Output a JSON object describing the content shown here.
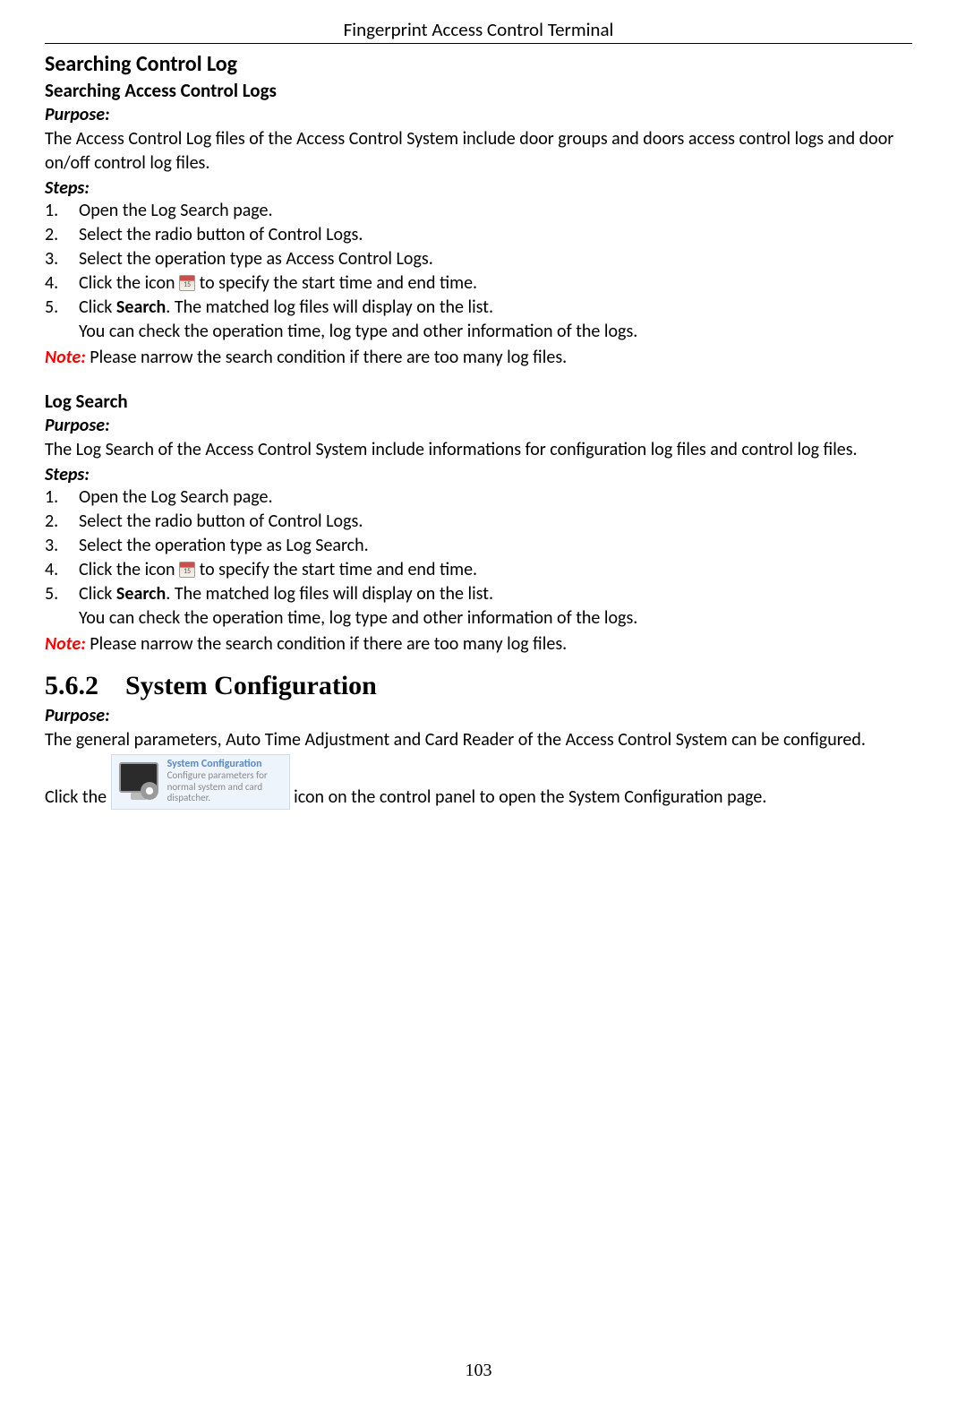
{
  "header": {
    "title": "Fingerprint Access Control Terminal"
  },
  "section1": {
    "heading": "Searching Control Log",
    "sub1": {
      "heading": "Searching Access Control Logs",
      "purpose_label": "Purpose:",
      "purpose_text": "The Access Control Log files of the Access Control System include door groups and doors access control logs and door on/off control log files.",
      "steps_label": "Steps:",
      "steps": [
        "Open the Log Search page.",
        "Select the radio button of Control Logs.",
        "Select the operation type as Access Control Logs."
      ],
      "step4_prefix": "Click the icon",
      "step4_suffix": " to specify the start time and end time.",
      "step5_prefix": "Click ",
      "step5_bold": "Search",
      "step5_suffix": ". The matched log files will display on the list.",
      "step5_line2": "You can check the operation time, log type and other information of the logs.",
      "note_label": "Note:",
      "note_text": " Please narrow the search condition if there are too many log files."
    },
    "sub2": {
      "heading": "Log Search",
      "purpose_label": "Purpose:",
      "purpose_text": "The Log Search of the Access Control System include informations for configuration log files and control log files.",
      "steps_label": "Steps:",
      "steps": [
        "Open the Log Search page.",
        "Select the radio button of Control Logs.",
        "Select the operation type as Log Search."
      ],
      "step4_prefix": "Click the icon",
      "step4_suffix": " to specify the start time and end time.",
      "step5_prefix": "Click ",
      "step5_bold": "Search",
      "step5_suffix": ". The matched log files will display on the list.",
      "step5_line2": "You can check the operation time, log type and other information of the logs.",
      "note_label": "Note:",
      "note_text": " Please narrow the search condition if there are too many log files."
    }
  },
  "section2": {
    "heading": "5.6.2 System Configuration",
    "purpose_label": "Purpose:",
    "purpose_text": "The general parameters, Auto Time Adjustment and Card Reader of the Access Control System can be configured.",
    "click_prefix": "Click the ",
    "click_suffix": " icon on the control panel to open the System Configuration page.",
    "icon": {
      "title": "System Configuration",
      "desc": "Configure parameters for normal system and card dispatcher."
    }
  },
  "page_number": "103"
}
